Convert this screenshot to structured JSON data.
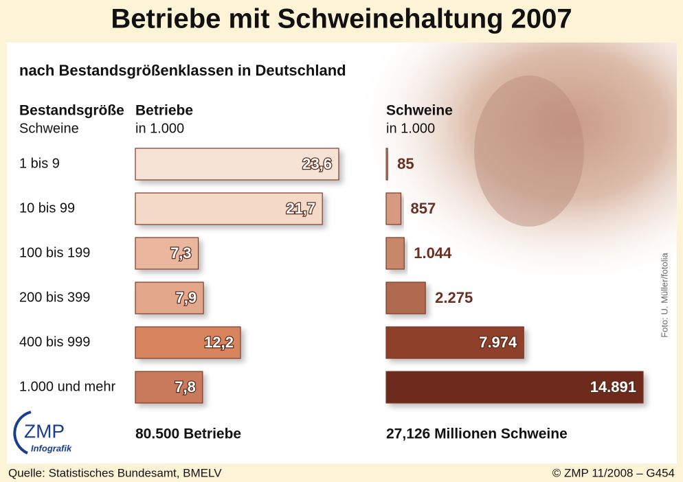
{
  "title": "Betriebe mit Schweinehaltung 2007",
  "subtitle": "nach Bestandsgrößenklassen in Deutschland",
  "category_header": [
    "Bestandsgröße",
    "Schweine"
  ],
  "photo_credit": "Foto: U. Müller/fotolia",
  "logo": {
    "name": "ZMP",
    "tagline": "Infografik"
  },
  "source": "Quelle: Statistisches Bundesamt, BMELV",
  "credit": "© ZMP 11/2008 – G454",
  "chart_data": [
    {
      "type": "bar",
      "orientation": "horizontal",
      "title": "Betriebe",
      "unit": "in 1.000",
      "categories": [
        "1 bis 9",
        "10 bis 99",
        "100 bis 199",
        "200 bis 399",
        "400 bis 999",
        "1.000 und mehr"
      ],
      "values": [
        23.6,
        21.7,
        7.3,
        7.9,
        12.2,
        7.8
      ],
      "value_labels": [
        "23,6",
        "21,7",
        "7,3",
        "7,9",
        "12,2",
        "7,8"
      ],
      "colors": [
        "#f7e2d6",
        "#f4d8c8",
        "#eab79e",
        "#e3a88b",
        "#d7845f",
        "#c97a5c"
      ],
      "total": "80.500 Betriebe"
    },
    {
      "type": "bar",
      "orientation": "horizontal",
      "title": "Schweine",
      "unit": "in 1.000",
      "values": [
        85,
        857,
        1044,
        2275,
        7974,
        14891
      ],
      "value_labels": [
        "85",
        "857",
        "1.044",
        "2.275",
        "7.974",
        "14.891"
      ],
      "colors": [
        "#c98a70",
        "#d59a80",
        "#c9876a",
        "#b06a50",
        "#8e3f2a",
        "#6e2a1b"
      ],
      "total": "27,126 Millionen Schweine"
    }
  ]
}
